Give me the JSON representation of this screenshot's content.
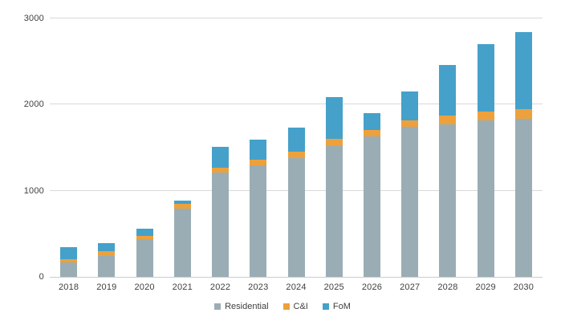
{
  "chart_data": {
    "type": "bar",
    "stacked": true,
    "title": "",
    "xlabel": "",
    "ylabel": "",
    "categories": [
      "2018",
      "2019",
      "2020",
      "2021",
      "2022",
      "2023",
      "2024",
      "2025",
      "2026",
      "2027",
      "2028",
      "2029",
      "2030"
    ],
    "series": [
      {
        "name": "Residential",
        "color": "#9BADB4",
        "values": [
          165,
          245,
          440,
          790,
          1210,
          1295,
          1380,
          1515,
          1630,
          1740,
          1770,
          1815,
          1835
        ]
      },
      {
        "name": "C&I",
        "color": "#EDA13C",
        "values": [
          40,
          55,
          40,
          55,
          55,
          70,
          70,
          85,
          75,
          75,
          100,
          100,
          110
        ]
      },
      {
        "name": "FoM",
        "color": "#45A1C9",
        "values": [
          140,
          95,
          75,
          45,
          245,
          225,
          280,
          485,
          195,
          335,
          590,
          785,
          895
        ]
      }
    ],
    "totals": [
      345,
      395,
      555,
      890,
      1510,
      1590,
      1730,
      2085,
      1900,
      2150,
      2460,
      2700,
      2840
    ],
    "ylim": [
      0,
      3000
    ],
    "yticks": [
      0,
      1000,
      2000,
      3000
    ],
    "grid": true,
    "legend_position": "bottom"
  },
  "colors": {
    "background": "#FFFFFF",
    "gridline": "#D9D9D9",
    "axis_text": "#404040",
    "residential": "#9BADB4",
    "ci": "#EDA13C",
    "fom": "#45A1C9"
  }
}
